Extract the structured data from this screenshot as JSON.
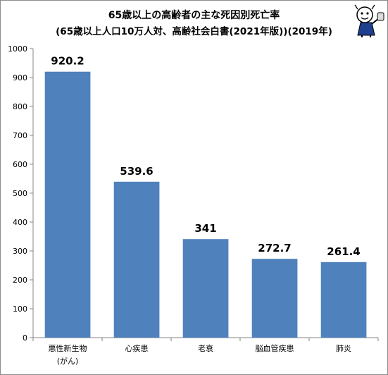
{
  "chart_data": {
    "type": "bar",
    "title": "65歳以上の高齢者の主な死因別死亡率",
    "subtitle": "(65歳以上人口10万人対、高齢社会白書(2021年版))(2019年)",
    "categories": [
      [
        "悪性新生物",
        "(がん)"
      ],
      [
        "心疾患"
      ],
      [
        "老衰"
      ],
      [
        "脳血管疾患"
      ],
      [
        "肺炎"
      ]
    ],
    "values": [
      920.2,
      539.6,
      341,
      272.7,
      261.4
    ],
    "value_labels": [
      "920.2",
      "539.6",
      "341",
      "272.7",
      "261.4"
    ],
    "ylim": [
      0,
      1000
    ],
    "yticks": [
      0,
      100,
      200,
      300,
      400,
      500,
      600,
      700,
      800,
      900,
      1000
    ],
    "xlabel": "",
    "ylabel": "",
    "grid": false,
    "legend": "none",
    "bar_color": "#4f81bd"
  },
  "mascot": {
    "icon": "mascot-character-icon"
  }
}
